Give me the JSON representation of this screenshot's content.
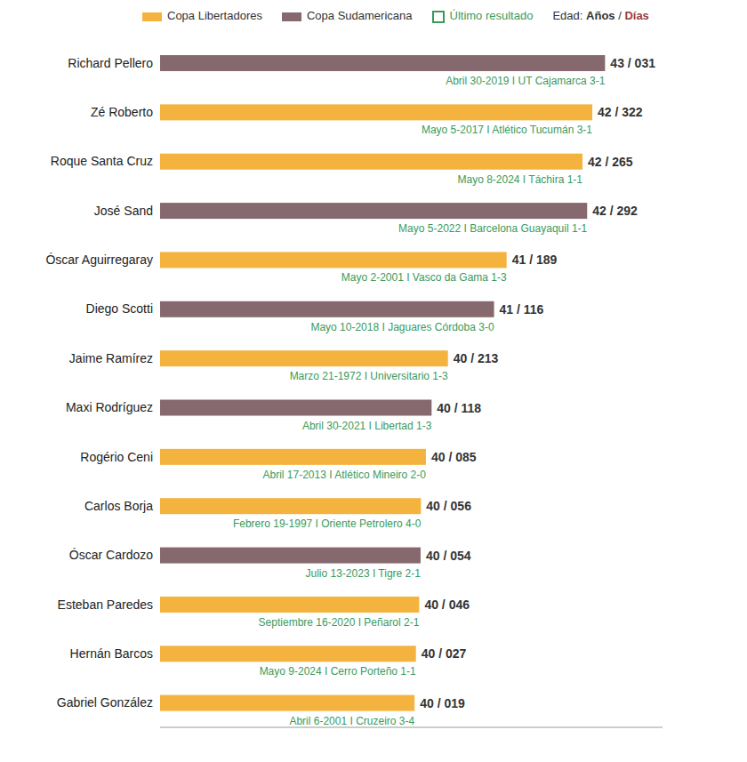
{
  "chart_data": {
    "type": "bar",
    "orientation": "horizontal",
    "tick_labels": "y",
    "xlim": [
      36,
      44
    ],
    "series": [
      {
        "name": "Copa Libertadores",
        "color": "#f4b33f"
      },
      {
        "name": "Copa Sudamericana",
        "color": "#86696e"
      }
    ],
    "result_label": "Último resultado",
    "age_key": {
      "title": "Edad:",
      "years": "Años",
      "days": "Días"
    },
    "categories": [
      "Richard Pellero",
      "Zé Roberto",
      "Roque Santa Cruz",
      "José Sand",
      "Óscar Aguirregaray",
      "Diego Scotti",
      "Jaime Ramírez",
      "Maxi Rodríguez",
      "Rogério Ceni",
      "Carlos Borja",
      "Óscar Cardozo",
      "Esteban Paredes",
      "Hernán Barcos",
      "Gabriel González"
    ],
    "competition": [
      "Copa Sudamericana",
      "Copa Libertadores",
      "Copa Libertadores",
      "Copa Sudamericana",
      "Copa Libertadores",
      "Copa Sudamericana",
      "Copa Libertadores",
      "Copa Sudamericana",
      "Copa Libertadores",
      "Copa Libertadores",
      "Copa Sudamericana",
      "Copa Libertadores",
      "Copa Libertadores",
      "Copa Libertadores"
    ],
    "years": [
      43,
      42,
      42,
      42,
      41,
      41,
      40,
      40,
      40,
      40,
      40,
      40,
      40,
      40
    ],
    "days": [
      31,
      322,
      265,
      292,
      189,
      116,
      213,
      118,
      85,
      56,
      54,
      46,
      27,
      19
    ],
    "value_labels": [
      "43 / 031",
      "42 / 322",
      "42 / 265",
      "42 / 292",
      "41 / 189",
      "41 / 116",
      "40 / 213",
      "40 / 118",
      "40 / 085",
      "40 / 056",
      "40 / 054",
      "40 / 046",
      "40 / 027",
      "40 / 019"
    ],
    "results": [
      "Abril 30-2019 I UT Cajamarca 3-1",
      "Mayo 5-2017 I Atlético Tucumán 3-1",
      "Mayo 8-2024 I Táchira 1-1",
      "Mayo 5-2022 I Barcelona Guayaquil 1-1",
      "Mayo 2-2001 I Vasco da Gama 1-3",
      "Mayo 10-2018 I Jaguares Córdoba 3-0",
      "Marzo 21-1972 I Universitario 1-3",
      "Abril 30-2021 I Libertad 1-3",
      "Abril 17-2013 I Atlético Mineiro 2-0",
      "Febrero 19-1997 I Oriente Petrolero 4-0",
      "Julio 13-2023 I Tigre 2-1",
      "Septiembre 16-2020 I Peñarol 2-1",
      "Mayo 9-2024 I Cerro Porteño 1-1",
      "Abril 6-2001 I Cruzeiro 3-4"
    ]
  }
}
